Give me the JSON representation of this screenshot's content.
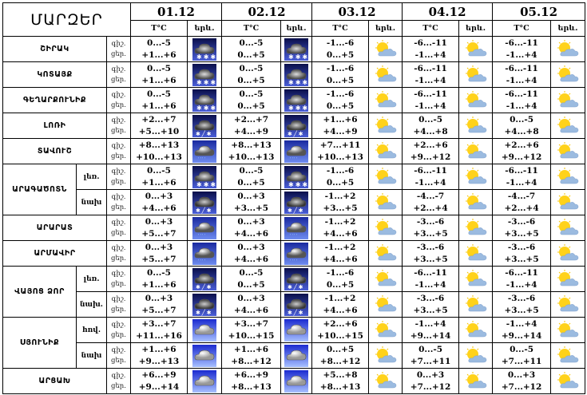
{
  "header": {
    "title": "ՄԱՐԶԵՐ",
    "dates": [
      "01.12",
      "02.12",
      "03.12",
      "04.12",
      "05.12"
    ],
    "temp_label": "T°C",
    "icon_label": "երև."
  },
  "labels": {
    "night": "գիշ.",
    "day": "ցեր."
  },
  "regions": [
    {
      "name": "ՇԻՐԱԿ",
      "rows": [
        {
          "sub": "",
          "night": [
            "0...-5",
            "0...-5",
            "-1...-6",
            "-6...-11",
            "-6...-11"
          ],
          "day": [
            "+1...+6",
            "0...+5",
            "0...+5",
            "-1...+4",
            "-1...+4"
          ],
          "icons": [
            "snow",
            "snow",
            "partly-cloudy",
            "partly-cloudy",
            "partly-cloudy"
          ]
        }
      ]
    },
    {
      "name": "ԿՈՏԱՅՔ",
      "rows": [
        {
          "sub": "",
          "night": [
            "0...-5",
            "0...-5",
            "-1...-6",
            "-6...-11",
            "-6...-11"
          ],
          "day": [
            "+1...+6",
            "0...+5",
            "0...+5",
            "-1...+4",
            "-1...+4"
          ],
          "icons": [
            "snow",
            "snow",
            "partly-cloudy",
            "partly-cloudy",
            "partly-cloudy"
          ]
        }
      ]
    },
    {
      "name": "ԳԵՂԱՐՔՈՒՆԻՔ",
      "rows": [
        {
          "sub": "",
          "night": [
            "0...-5",
            "0...-5",
            "-1...-6",
            "-6...-11",
            "-6...-11"
          ],
          "day": [
            "+1...+6",
            "0...+5",
            "0...+5",
            "-1...+4",
            "-1...+4"
          ],
          "icons": [
            "snow",
            "snow",
            "partly-cloudy",
            "partly-cloudy",
            "partly-cloudy"
          ]
        }
      ]
    },
    {
      "name": "ԼՈՌԻ",
      "rows": [
        {
          "sub": "",
          "night": [
            "+2...+7",
            "+2...+7",
            "+1...+6",
            "0...-5",
            "0...-5"
          ],
          "day": [
            "+5...+10",
            "+4...+9",
            "+4...+9",
            "+4...+8",
            "+4...+8"
          ],
          "icons": [
            "sleet",
            "sleet",
            "partly-cloudy",
            "partly-cloudy",
            "partly-cloudy"
          ]
        }
      ]
    },
    {
      "name": "ՏԱՎՈՒՇ",
      "rows": [
        {
          "sub": "",
          "night": [
            "+8...+13",
            "+8...+13",
            "+7...+11",
            "+2...+6",
            "+2...+6"
          ],
          "day": [
            "+10...+13",
            "+10...+13",
            "+10...+13",
            "+9...+12",
            "+9...+12"
          ],
          "icons": [
            "rain",
            "rain",
            "partly-cloudy",
            "partly-cloudy",
            "partly-cloudy"
          ]
        }
      ]
    },
    {
      "name": "ԱՐԱԳԱԾՈՏՆ",
      "rows": [
        {
          "sub": "լեռ.",
          "night": [
            "0...-5",
            "0...-5",
            "-1...-6",
            "-6...-11",
            "-6...-11"
          ],
          "day": [
            "+1...+6",
            "0...+5",
            "0...+5",
            "-1...+4",
            "-1...+4"
          ],
          "icons": [
            "snow",
            "snow",
            "partly-cloudy",
            "partly-cloudy",
            "partly-cloudy"
          ]
        },
        {
          "sub": "նախ",
          "night": [
            "0...+3",
            "0...+3",
            "-1...+2",
            "-4...-7",
            "-4...-7"
          ],
          "day": [
            "+4...+6",
            "+3...+5",
            "+3...+5",
            "+2...+4",
            "+2...+4"
          ],
          "icons": [
            "sleet",
            "sleet",
            "partly-cloudy",
            "partly-cloudy",
            "partly-cloudy"
          ]
        }
      ]
    },
    {
      "name": "ԱՐԱՐԱՏ",
      "rows": [
        {
          "sub": "",
          "night": [
            "0...+3",
            "0...+3",
            "-1...+2",
            "-3...-6",
            "-3...-6"
          ],
          "day": [
            "+5...+7",
            "+4...+6",
            "+4...+6",
            "+3...+5",
            "+3...+5"
          ],
          "icons": [
            "rain",
            "rain",
            "partly-cloudy",
            "partly-cloudy",
            "partly-cloudy"
          ]
        }
      ]
    },
    {
      "name": "ԱՐՄԱՎԻՐ",
      "rows": [
        {
          "sub": "",
          "night": [
            "0...+3",
            "0...+3",
            "-1...+2",
            "-3...-6",
            "-3...-6"
          ],
          "day": [
            "+5...+7",
            "+4...+6",
            "+4...+6",
            "+3...+5",
            "+3...+5"
          ],
          "icons": [
            "rain",
            "rain",
            "partly-cloudy",
            "partly-cloudy",
            "partly-cloudy"
          ]
        }
      ]
    },
    {
      "name": "ՎԱՅՈՑ ՁՈՐ",
      "rows": [
        {
          "sub": "լեռ.",
          "night": [
            "0...-5",
            "0...-5",
            "-1...-6",
            "-6...-11",
            "-6...-11"
          ],
          "day": [
            "+1...+6",
            "0...+5",
            "0...+5",
            "-1...+4",
            "-1...+4"
          ],
          "icons": [
            "sleet",
            "sleet",
            "partly-cloudy",
            "partly-cloudy",
            "partly-cloudy"
          ]
        },
        {
          "sub": "նախ.",
          "night": [
            "0...+3",
            "0...+3",
            "-1...+2",
            "-3...-6",
            "-3...-6"
          ],
          "day": [
            "+5...+7",
            "+4...+6",
            "+4...+6",
            "+3...+5",
            "+3...+5"
          ],
          "icons": [
            "sleet",
            "sleet",
            "partly-cloudy",
            "partly-cloudy",
            "partly-cloudy"
          ]
        }
      ]
    },
    {
      "name": "ՍՅՈՒՆԻՔ",
      "rows": [
        {
          "sub": "հով.",
          "night": [
            "+3...+7",
            "+3...+7",
            "+2...+6",
            "-1...+4",
            "-1...+4"
          ],
          "day": [
            "+11...+16",
            "+10...+15",
            "+10...+15",
            "+9...+14",
            "+9...+14"
          ],
          "icons": [
            "cloudy",
            "cloudy",
            "partly-cloudy",
            "partly-cloudy",
            "partly-cloudy"
          ]
        },
        {
          "sub": "նախ",
          "night": [
            "+1...+6",
            "+1...+6",
            "0...+5",
            "0...-5",
            "0...-5"
          ],
          "day": [
            "+9...+13",
            "+8...+12",
            "+8...+12",
            "+7...+11",
            "+7...+11"
          ],
          "icons": [
            "cloudy",
            "cloudy",
            "partly-cloudy",
            "partly-cloudy",
            "partly-cloudy"
          ]
        }
      ]
    },
    {
      "name": "ԱՐՑԱԽ",
      "rows": [
        {
          "sub": "",
          "night": [
            "+6...+9",
            "+6...+9",
            "+5...+8",
            "0...+3",
            "0...+3"
          ],
          "day": [
            "+9...+14",
            "+8...+13",
            "+8...+13",
            "+7...+12",
            "+7...+12"
          ],
          "icons": [
            "cloudy",
            "cloudy",
            "partly-cloudy",
            "partly-cloudy",
            "partly-cloudy"
          ]
        }
      ]
    }
  ]
}
